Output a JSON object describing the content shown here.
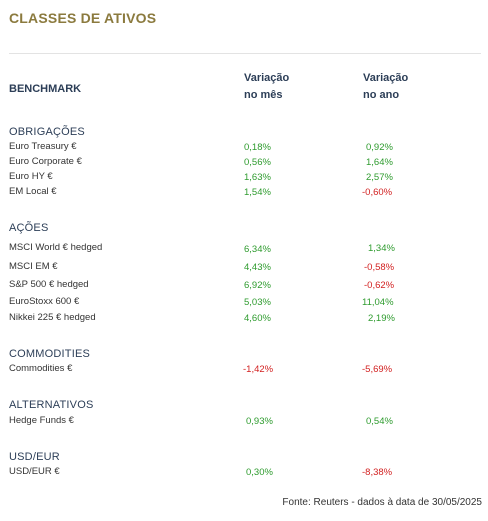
{
  "title": "CLASSES DE ATIVOS",
  "header": {
    "benchmark": "BENCHMARK",
    "month_line1": "Variação",
    "month_line2": "no mês",
    "year_line1": "Variação",
    "year_line2": "no ano"
  },
  "sections": {
    "obrigacoes": {
      "title": "OBRIGAÇÕES",
      "rows": [
        {
          "label": "Euro Treasury €",
          "month": "0,18%",
          "year": "0,92%"
        },
        {
          "label": "Euro Corporate €",
          "month": "0,56%",
          "year": "1,64%"
        },
        {
          "label": "Euro HY €",
          "month": "1,63%",
          "year": "2,57%"
        },
        {
          "label": "EM Local €",
          "month": "1,54%",
          "year": "-0,60%"
        }
      ]
    },
    "acoes": {
      "title": "AÇÕES",
      "rows": [
        {
          "label": "MSCI World € hedged",
          "month": "6,34%",
          "year": "1,34%"
        },
        {
          "label": "MSCI EM €",
          "month": "4,43%",
          "year": "-0,58%"
        },
        {
          "label": "S&P 500 € hedged",
          "month": "6,92%",
          "year": "-0,62%"
        },
        {
          "label": "EuroStoxx 600 €",
          "month": "5,03%",
          "year": "11,04%"
        },
        {
          "label": "Nikkei 225 € hedged",
          "month": "4,60%",
          "year": "2,19%"
        }
      ]
    },
    "commodities": {
      "title": "COMMODITIES",
      "rows": [
        {
          "label": "Commodities €",
          "month": "-1,42%",
          "year": "-5,69%"
        }
      ]
    },
    "alternativos": {
      "title": "ALTERNATIVOS",
      "rows": [
        {
          "label": "Hedge Funds €",
          "month": "0,93%",
          "year": "0,54%"
        }
      ]
    },
    "usdeur": {
      "title": "USD/EUR",
      "rows": [
        {
          "label": "USD/EUR €",
          "month": "0,30%",
          "year": "-8,38%"
        }
      ]
    }
  },
  "source": "Fonte: Reuters - dados à data de 30/05/2025",
  "colors": {
    "title": "#8b7a3e",
    "header": "#2c3e57",
    "positive": "#2e9b2e",
    "negative": "#d21f1f"
  }
}
